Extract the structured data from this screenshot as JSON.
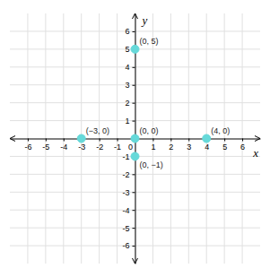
{
  "chart_data": {
    "type": "scatter",
    "x": [
      -3,
      0,
      0,
      0,
      4
    ],
    "values": [
      0,
      0,
      -1,
      5,
      0
    ],
    "annotations": [
      "(−3, 0)",
      "(0, 0)",
      "(0, −1)",
      "(0, 5)",
      "(4, 0)"
    ],
    "color": "#66d9d9",
    "xlim": [
      -7,
      7
    ],
    "ylim": [
      -7,
      7
    ],
    "xticks": [
      -6,
      -5,
      -4,
      -3,
      -2,
      -1,
      0,
      1,
      2,
      3,
      4,
      5,
      6
    ],
    "yticks": [
      -6,
      -5,
      -4,
      -3,
      -2,
      -1,
      1,
      2,
      3,
      4,
      5,
      6
    ],
    "grid": true,
    "xlabel": "x",
    "ylabel": "y"
  }
}
